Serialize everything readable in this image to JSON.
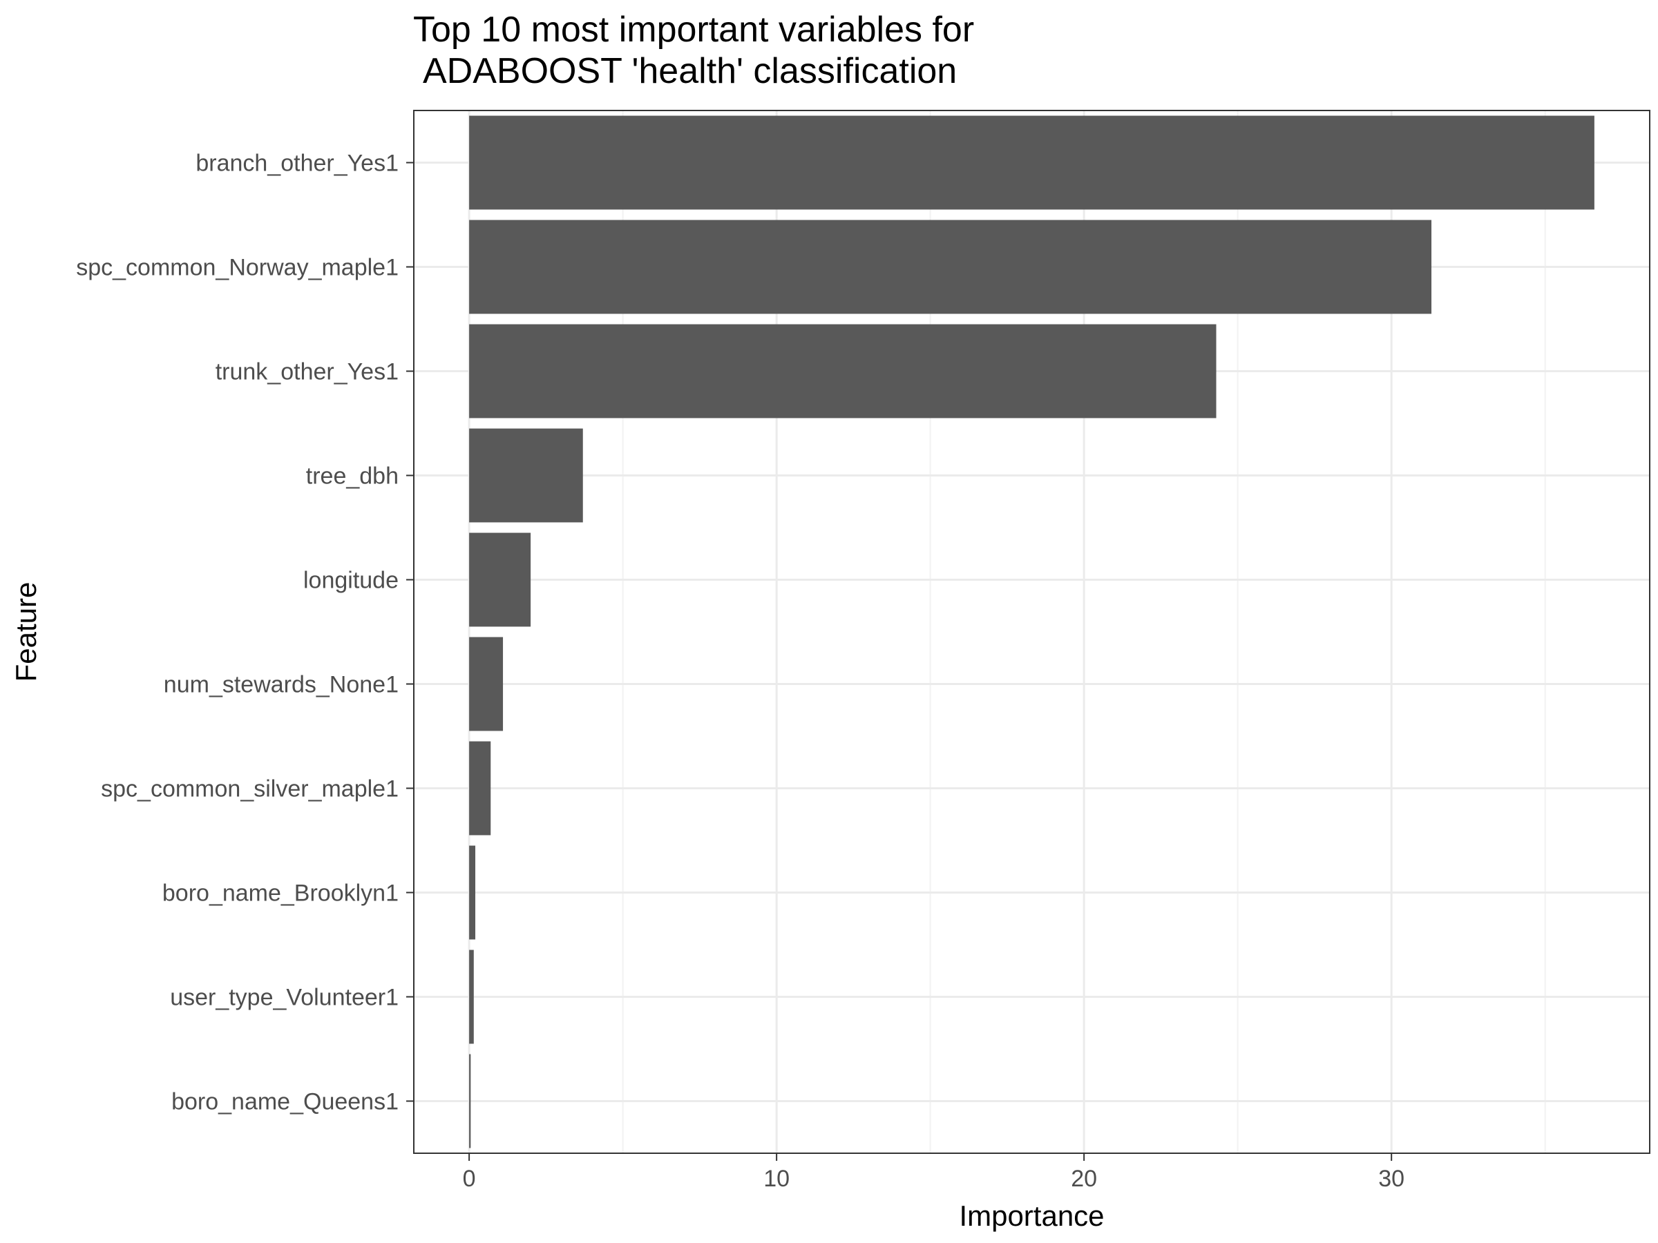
{
  "chart_data": {
    "type": "bar",
    "orientation": "horizontal",
    "title": [
      "Top 10 most important variables for",
      "ADABOOST 'health' classification"
    ],
    "xlabel": "Importance",
    "ylabel": "Feature",
    "categories": [
      "branch_other_Yes1",
      "spc_common_Norway_maple1",
      "trunk_other_Yes1",
      "tree_dbh",
      "longitude",
      "num_stewards_None1",
      "spc_common_silver_maple1",
      "boro_name_Brooklyn1",
      "user_type_Volunteer1",
      "boro_name_Queens1"
    ],
    "values": [
      36.6,
      31.3,
      24.3,
      3.7,
      2.0,
      1.1,
      0.7,
      0.2,
      0.15,
      0.05
    ],
    "xlim": [
      -1.8,
      38.4
    ],
    "xticks": [
      0,
      10,
      20,
      30
    ],
    "grid": true,
    "legend": "none",
    "colors": {
      "bar": "#595959",
      "grid_major": "#ebebeb",
      "grid_minor": "#f2f2f2",
      "panel_border": "#333333",
      "tick_text": "#4d4d4d",
      "axis_ticks": "#333333"
    }
  }
}
